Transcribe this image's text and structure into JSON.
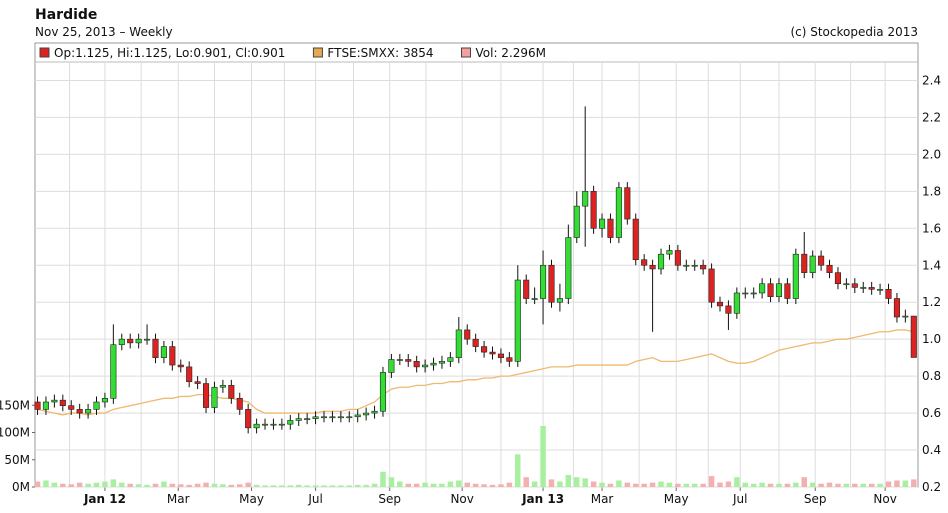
{
  "chart_data": {
    "type": "candlestick",
    "title": "Hardide",
    "subtitle": "Nov 25, 2013 – Weekly",
    "source": "(c) Stockopedia 2013",
    "legend": [
      {
        "name": "Op:1.125, Hi:1.125, Lo:0.901, Cl:0.901",
        "color": "#dd2222"
      },
      {
        "name": "FTSE:SMXX: 3854",
        "color": "#e8a850"
      },
      {
        "name": "Vol: 2.296M",
        "color": "#f4a0a0"
      }
    ],
    "up_color": "#33dd33",
    "down_color": "#dd2222",
    "volume_up_color": "#a8f0a0",
    "volume_down_color": "#f4b0b0",
    "line_color": "#f0b870",
    "grid": true,
    "xlim": [
      -0.3,
      104.5
    ],
    "xticks": [
      {
        "value": 8,
        "label": "Jan 12"
      },
      {
        "value": 16.7,
        "label": "Mar"
      },
      {
        "value": 25.4,
        "label": "May"
      },
      {
        "value": 33,
        "label": "Jul"
      },
      {
        "value": 41.8,
        "label": "Sep"
      },
      {
        "value": 50.4,
        "label": "Nov"
      },
      {
        "value": 60,
        "label": "Jan 13"
      },
      {
        "value": 67,
        "label": "Mar"
      },
      {
        "value": 75.8,
        "label": "May"
      },
      {
        "value": 83.4,
        "label": "Jul"
      },
      {
        "value": 92.3,
        "label": "Sep"
      },
      {
        "value": 100.6,
        "label": "Nov"
      }
    ],
    "xminor": [
      3.8,
      12.3,
      21,
      29.3,
      37.5,
      46.1,
      55,
      63.6,
      71.4,
      79.6,
      88,
      96.5
    ],
    "ylim": [
      0.2,
      2.5
    ],
    "yticks": [
      0.2,
      0.4,
      0.6,
      0.8,
      {
        "value": 1,
        "label": "1.0"
      },
      1.2,
      1.4,
      1.6,
      1.8,
      {
        "value": 2,
        "label": "2.0"
      },
      2.2,
      2.4
    ],
    "vlim": [
      0,
      780
    ],
    "vticks": [
      {
        "value": 0,
        "label": "0M"
      },
      {
        "value": 50,
        "label": "50M"
      },
      {
        "value": 100,
        "label": "100M"
      },
      {
        "value": 150,
        "label": "150M"
      }
    ],
    "open": [
      0.66,
      0.62,
      0.66,
      0.67,
      0.64,
      0.62,
      0.6,
      0.62,
      0.66,
      0.68,
      0.97,
      1.0,
      0.98,
      1.0,
      1.0,
      0.9,
      0.96,
      0.86,
      0.85,
      0.77,
      0.76,
      0.63,
      0.74,
      0.75,
      0.68,
      0.62,
      0.52,
      0.54,
      0.54,
      0.54,
      0.54,
      0.56,
      0.57,
      0.57,
      0.58,
      0.58,
      0.58,
      0.58,
      0.58,
      0.59,
      0.6,
      0.61,
      0.82,
      0.89,
      0.89,
      0.88,
      0.85,
      0.86,
      0.87,
      0.88,
      0.9,
      1.05,
      1.0,
      0.96,
      0.93,
      0.92,
      0.9,
      0.88,
      1.32,
      1.22,
      1.22,
      1.4,
      1.2,
      1.22,
      1.55,
      1.72,
      1.8,
      1.6,
      1.65,
      1.55,
      1.82,
      1.65,
      1.43,
      1.4,
      1.38,
      1.46,
      1.48,
      1.4,
      1.4,
      1.4,
      1.38,
      1.2,
      1.18,
      1.14,
      1.25,
      1.25,
      1.25,
      1.3,
      1.23,
      1.3,
      1.22,
      1.46,
      1.36,
      1.45,
      1.4,
      1.36,
      1.3,
      1.3,
      1.28,
      1.28,
      1.27,
      1.27,
      1.22,
      1.12,
      1.125
    ],
    "high": [
      0.69,
      0.69,
      0.7,
      0.7,
      0.67,
      0.65,
      0.65,
      0.69,
      0.71,
      1.08,
      1.03,
      1.03,
      1.03,
      1.08,
      1.03,
      0.99,
      0.99,
      0.89,
      0.88,
      0.8,
      0.79,
      0.77,
      0.78,
      0.78,
      0.71,
      0.65,
      0.57,
      0.57,
      0.57,
      0.57,
      0.59,
      0.6,
      0.6,
      0.61,
      0.61,
      0.61,
      0.61,
      0.61,
      0.62,
      0.63,
      0.64,
      0.85,
      0.92,
      0.92,
      0.92,
      0.91,
      0.89,
      0.9,
      0.91,
      0.93,
      1.12,
      1.08,
      1.03,
      0.99,
      0.96,
      0.95,
      0.93,
      1.4,
      1.35,
      1.28,
      1.48,
      1.43,
      1.3,
      1.62,
      1.8,
      2.26,
      1.83,
      1.68,
      1.68,
      1.85,
      1.85,
      1.68,
      1.46,
      1.43,
      1.49,
      1.51,
      1.51,
      1.43,
      1.43,
      1.43,
      1.41,
      1.23,
      1.21,
      1.28,
      1.28,
      1.28,
      1.33,
      1.33,
      1.33,
      1.33,
      1.49,
      1.58,
      1.48,
      1.48,
      1.43,
      1.39,
      1.33,
      1.33,
      1.31,
      1.31,
      1.3,
      1.3,
      1.25,
      1.16,
      1.125
    ],
    "low": [
      0.59,
      0.59,
      0.63,
      0.61,
      0.59,
      0.57,
      0.57,
      0.59,
      0.63,
      0.65,
      0.94,
      0.95,
      0.95,
      0.97,
      0.87,
      0.87,
      0.83,
      0.82,
      0.74,
      0.73,
      0.6,
      0.6,
      0.71,
      0.65,
      0.59,
      0.49,
      0.49,
      0.51,
      0.51,
      0.51,
      0.51,
      0.53,
      0.54,
      0.54,
      0.55,
      0.55,
      0.55,
      0.55,
      0.55,
      0.56,
      0.57,
      0.58,
      0.79,
      0.86,
      0.85,
      0.82,
      0.82,
      0.83,
      0.84,
      0.85,
      0.87,
      0.97,
      0.93,
      0.9,
      0.89,
      0.87,
      0.85,
      0.85,
      1.19,
      1.19,
      1.08,
      1.17,
      1.15,
      1.19,
      1.52,
      1.5,
      1.57,
      1.55,
      1.52,
      1.52,
      1.62,
      1.4,
      1.37,
      1.04,
      1.35,
      1.43,
      1.37,
      1.37,
      1.37,
      1.35,
      1.17,
      1.15,
      1.05,
      1.11,
      1.22,
      1.22,
      1.22,
      1.2,
      1.2,
      1.19,
      1.19,
      1.33,
      1.33,
      1.37,
      1.33,
      1.27,
      1.27,
      1.25,
      1.25,
      1.24,
      1.24,
      1.19,
      1.09,
      1.09,
      0.901
    ],
    "close": [
      0.62,
      0.66,
      0.67,
      0.64,
      0.62,
      0.6,
      0.62,
      0.66,
      0.68,
      0.97,
      1.0,
      0.98,
      1.0,
      1.0,
      0.9,
      0.96,
      0.86,
      0.85,
      0.77,
      0.76,
      0.63,
      0.74,
      0.75,
      0.68,
      0.62,
      0.52,
      0.54,
      0.54,
      0.54,
      0.54,
      0.56,
      0.57,
      0.57,
      0.58,
      0.58,
      0.58,
      0.58,
      0.58,
      0.59,
      0.6,
      0.61,
      0.82,
      0.89,
      0.89,
      0.88,
      0.85,
      0.86,
      0.87,
      0.88,
      0.9,
      1.05,
      1.0,
      0.96,
      0.93,
      0.92,
      0.9,
      0.88,
      1.32,
      1.22,
      1.22,
      1.4,
      1.2,
      1.22,
      1.55,
      1.72,
      1.8,
      1.6,
      1.65,
      1.55,
      1.82,
      1.65,
      1.43,
      1.4,
      1.38,
      1.46,
      1.48,
      1.4,
      1.4,
      1.4,
      1.38,
      1.2,
      1.18,
      1.14,
      1.25,
      1.25,
      1.25,
      1.3,
      1.23,
      1.3,
      1.22,
      1.46,
      1.36,
      1.45,
      1.4,
      1.36,
      1.3,
      1.3,
      1.28,
      1.28,
      1.27,
      1.27,
      1.22,
      1.12,
      1.125,
      0.901
    ],
    "volume": [
      10,
      12,
      8,
      6,
      5,
      8,
      6,
      8,
      10,
      14,
      8,
      6,
      5,
      4,
      6,
      10,
      6,
      5,
      4,
      6,
      8,
      6,
      5,
      4,
      5,
      8,
      4,
      3,
      3,
      3,
      3,
      4,
      3,
      3,
      3,
      3,
      3,
      3,
      4,
      4,
      6,
      28,
      18,
      10,
      6,
      6,
      8,
      6,
      6,
      10,
      12,
      8,
      6,
      5,
      4,
      5,
      8,
      60,
      18,
      10,
      112,
      14,
      10,
      22,
      18,
      16,
      10,
      8,
      6,
      12,
      8,
      6,
      6,
      8,
      10,
      8,
      6,
      6,
      6,
      6,
      20,
      8,
      10,
      18,
      8,
      6,
      8,
      6,
      6,
      6,
      8,
      18,
      8,
      6,
      8,
      6,
      6,
      6,
      6,
      6,
      6,
      10,
      12,
      12,
      14
    ],
    "ftse": [
      0.62,
      0.61,
      0.6,
      0.59,
      0.6,
      0.6,
      0.59,
      0.6,
      0.6,
      0.62,
      0.63,
      0.64,
      0.65,
      0.66,
      0.67,
      0.68,
      0.68,
      0.69,
      0.69,
      0.7,
      0.7,
      0.69,
      0.68,
      0.68,
      0.67,
      0.66,
      0.62,
      0.6,
      0.6,
      0.6,
      0.6,
      0.6,
      0.6,
      0.6,
      0.61,
      0.61,
      0.61,
      0.62,
      0.62,
      0.64,
      0.66,
      0.7,
      0.73,
      0.74,
      0.74,
      0.75,
      0.75,
      0.76,
      0.76,
      0.77,
      0.77,
      0.78,
      0.78,
      0.79,
      0.79,
      0.8,
      0.8,
      0.81,
      0.82,
      0.83,
      0.84,
      0.85,
      0.85,
      0.85,
      0.86,
      0.86,
      0.86,
      0.86,
      0.86,
      0.86,
      0.86,
      0.88,
      0.89,
      0.9,
      0.88,
      0.88,
      0.88,
      0.89,
      0.9,
      0.91,
      0.92,
      0.9,
      0.88,
      0.87,
      0.87,
      0.88,
      0.9,
      0.92,
      0.94,
      0.95,
      0.96,
      0.97,
      0.98,
      0.98,
      0.99,
      1.0,
      1.0,
      1.01,
      1.02,
      1.03,
      1.04,
      1.04,
      1.05,
      1.05,
      1.04
    ]
  }
}
